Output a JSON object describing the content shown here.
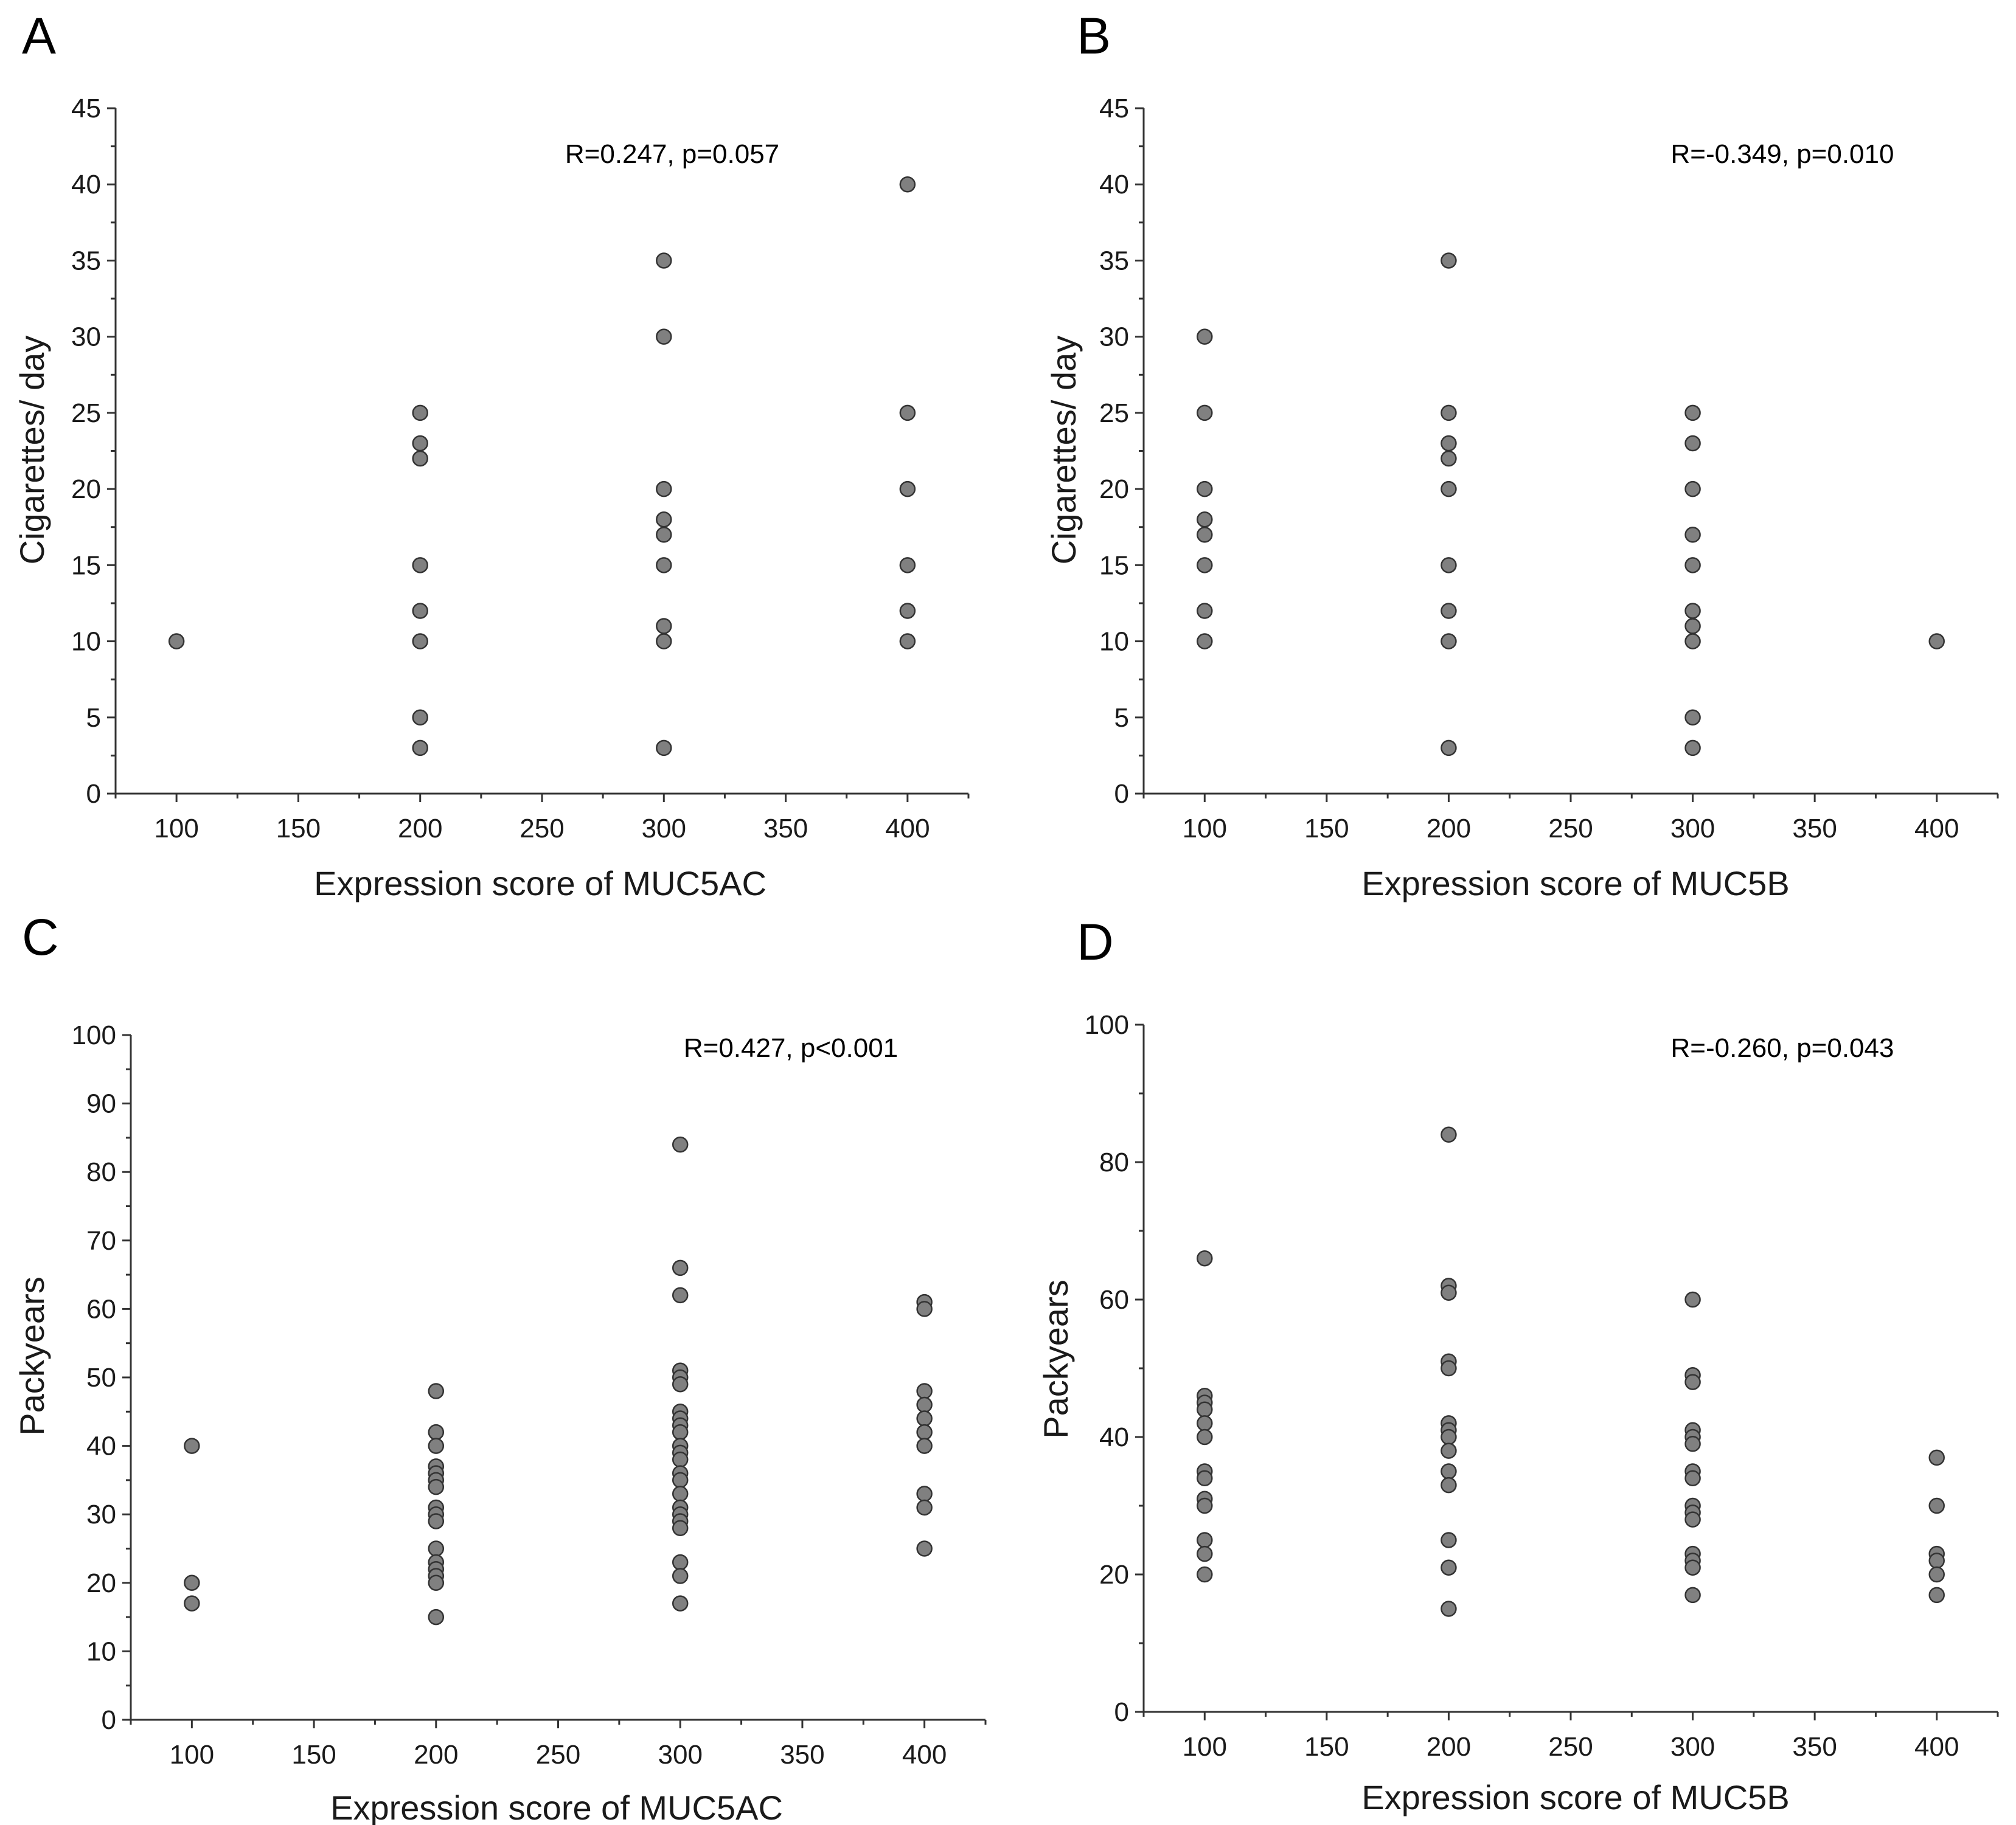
{
  "chart_data": [
    {
      "panel": "A",
      "type": "scatter",
      "title": "",
      "annotation": "R=0.247, p=0.057",
      "xlabel": "Expression score of MUC5AC",
      "ylabel": "Cigarettes/ day",
      "xlim": [
        75,
        425
      ],
      "ylim": [
        0,
        45
      ],
      "xticks": [
        100,
        150,
        200,
        250,
        300,
        350,
        400
      ],
      "yticks": [
        0,
        5,
        10,
        15,
        20,
        25,
        30,
        35,
        40,
        45
      ],
      "points": [
        [
          100,
          10
        ],
        [
          200,
          25
        ],
        [
          200,
          23
        ],
        [
          200,
          22
        ],
        [
          200,
          15
        ],
        [
          200,
          12
        ],
        [
          200,
          10
        ],
        [
          200,
          5
        ],
        [
          200,
          3
        ],
        [
          300,
          35
        ],
        [
          300,
          30
        ],
        [
          300,
          20
        ],
        [
          300,
          18
        ],
        [
          300,
          17
        ],
        [
          300,
          15
        ],
        [
          300,
          11
        ],
        [
          300,
          10
        ],
        [
          300,
          3
        ],
        [
          400,
          40
        ],
        [
          400,
          25
        ],
        [
          400,
          20
        ],
        [
          400,
          15
        ],
        [
          400,
          12
        ],
        [
          400,
          10
        ]
      ]
    },
    {
      "panel": "B",
      "type": "scatter",
      "title": "",
      "annotation": "R=-0.349, p=0.010",
      "xlabel": "Expression score of MUC5B",
      "ylabel": "Cigarettes/ day",
      "xlim": [
        75,
        425
      ],
      "ylim": [
        0,
        45
      ],
      "xticks": [
        100,
        150,
        200,
        250,
        300,
        350,
        400
      ],
      "yticks": [
        0,
        5,
        10,
        15,
        20,
        25,
        30,
        35,
        40,
        45
      ],
      "points": [
        [
          100,
          30
        ],
        [
          100,
          25
        ],
        [
          100,
          20
        ],
        [
          100,
          18
        ],
        [
          100,
          17
        ],
        [
          100,
          15
        ],
        [
          100,
          12
        ],
        [
          100,
          10
        ],
        [
          200,
          35
        ],
        [
          200,
          25
        ],
        [
          200,
          23
        ],
        [
          200,
          22
        ],
        [
          200,
          20
        ],
        [
          200,
          15
        ],
        [
          200,
          12
        ],
        [
          200,
          10
        ],
        [
          200,
          3
        ],
        [
          300,
          25
        ],
        [
          300,
          23
        ],
        [
          300,
          20
        ],
        [
          300,
          17
        ],
        [
          300,
          15
        ],
        [
          300,
          12
        ],
        [
          300,
          11
        ],
        [
          300,
          10
        ],
        [
          300,
          5
        ],
        [
          300,
          3
        ],
        [
          400,
          10
        ]
      ]
    },
    {
      "panel": "C",
      "type": "scatter",
      "title": "",
      "annotation": "R=0.427, p<0.001",
      "xlabel": "Expression score of MUC5AC",
      "ylabel": "Packyears",
      "xlim": [
        75,
        425
      ],
      "ylim": [
        0,
        100
      ],
      "xticks": [
        100,
        150,
        200,
        250,
        300,
        350,
        400
      ],
      "yticks": [
        0,
        10,
        20,
        30,
        40,
        50,
        60,
        70,
        80,
        90,
        100
      ],
      "points": [
        [
          100,
          40
        ],
        [
          100,
          20
        ],
        [
          100,
          17
        ],
        [
          200,
          48
        ],
        [
          200,
          42
        ],
        [
          200,
          40
        ],
        [
          200,
          37
        ],
        [
          200,
          36
        ],
        [
          200,
          35
        ],
        [
          200,
          34
        ],
        [
          200,
          31
        ],
        [
          200,
          30
        ],
        [
          200,
          29
        ],
        [
          200,
          25
        ],
        [
          200,
          23
        ],
        [
          200,
          22
        ],
        [
          200,
          21
        ],
        [
          200,
          20
        ],
        [
          200,
          15
        ],
        [
          300,
          84
        ],
        [
          300,
          66
        ],
        [
          300,
          62
        ],
        [
          300,
          51
        ],
        [
          300,
          50
        ],
        [
          300,
          49
        ],
        [
          300,
          45
        ],
        [
          300,
          44
        ],
        [
          300,
          43
        ],
        [
          300,
          42
        ],
        [
          300,
          40
        ],
        [
          300,
          39
        ],
        [
          300,
          38
        ],
        [
          300,
          36
        ],
        [
          300,
          35
        ],
        [
          300,
          33
        ],
        [
          300,
          31
        ],
        [
          300,
          30
        ],
        [
          300,
          29
        ],
        [
          300,
          28
        ],
        [
          300,
          23
        ],
        [
          300,
          21
        ],
        [
          300,
          17
        ],
        [
          400,
          61
        ],
        [
          400,
          60
        ],
        [
          400,
          48
        ],
        [
          400,
          46
        ],
        [
          400,
          44
        ],
        [
          400,
          42
        ],
        [
          400,
          40
        ],
        [
          400,
          33
        ],
        [
          400,
          31
        ],
        [
          400,
          25
        ]
      ]
    },
    {
      "panel": "D",
      "type": "scatter",
      "title": "",
      "annotation": "R=-0.260, p=0.043",
      "xlabel": "Expression score of MUC5B",
      "ylabel": "Packyears",
      "xlim": [
        75,
        425
      ],
      "ylim": [
        0,
        100
      ],
      "xticks": [
        100,
        150,
        200,
        250,
        300,
        350,
        400
      ],
      "yticks": [
        0,
        20,
        40,
        60,
        80,
        100
      ],
      "points": [
        [
          100,
          66
        ],
        [
          100,
          46
        ],
        [
          100,
          45
        ],
        [
          100,
          44
        ],
        [
          100,
          42
        ],
        [
          100,
          40
        ],
        [
          100,
          35
        ],
        [
          100,
          34
        ],
        [
          100,
          31
        ],
        [
          100,
          30
        ],
        [
          100,
          25
        ],
        [
          100,
          23
        ],
        [
          100,
          20
        ],
        [
          200,
          84
        ],
        [
          200,
          62
        ],
        [
          200,
          61
        ],
        [
          200,
          51
        ],
        [
          200,
          50
        ],
        [
          200,
          42
        ],
        [
          200,
          41
        ],
        [
          200,
          40
        ],
        [
          200,
          38
        ],
        [
          200,
          35
        ],
        [
          200,
          33
        ],
        [
          200,
          25
        ],
        [
          200,
          21
        ],
        [
          200,
          15
        ],
        [
          300,
          60
        ],
        [
          300,
          49
        ],
        [
          300,
          48
        ],
        [
          300,
          41
        ],
        [
          300,
          40
        ],
        [
          300,
          39
        ],
        [
          300,
          35
        ],
        [
          300,
          34
        ],
        [
          300,
          30
        ],
        [
          300,
          29
        ],
        [
          300,
          28
        ],
        [
          300,
          23
        ],
        [
          300,
          22
        ],
        [
          300,
          21
        ],
        [
          300,
          17
        ],
        [
          400,
          37
        ],
        [
          400,
          30
        ],
        [
          400,
          23
        ],
        [
          400,
          22
        ],
        [
          400,
          20
        ],
        [
          400,
          17
        ]
      ]
    }
  ]
}
